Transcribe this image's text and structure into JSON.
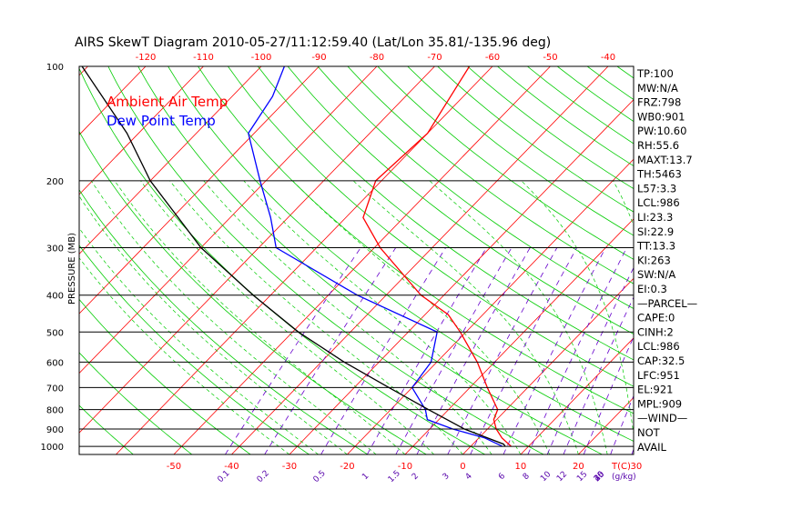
{
  "chart_data": {
    "type": "line",
    "title": "AIRS SkewT Diagram 2010-05-27/11:12:59.40 (Lat/Lon 35.81/-135.96 deg)",
    "ylabel": "PRESSURE (MB)",
    "pressure_ticks": [
      "100",
      "200",
      "300",
      "400",
      "500",
      "600",
      "700",
      "800",
      "900",
      "1000"
    ],
    "isobars": [
      100,
      200,
      300,
      400,
      500,
      600,
      700,
      800,
      900,
      1000
    ],
    "top_ticks": [
      -120,
      -110,
      -100,
      -90,
      -80,
      -70,
      -60,
      -50,
      -40
    ],
    "bottom_ticks": [
      -50,
      -40,
      -30,
      -20,
      -10,
      0,
      10,
      20,
      30
    ],
    "bottom_unit": "T(C)",
    "mixing_ratio_labels": [
      "0.1",
      "0.2",
      "0.5",
      "1",
      "1.5",
      "2",
      "3",
      "4",
      "6",
      "8",
      "10",
      "12",
      "15",
      "20",
      "25",
      "30",
      "40"
    ],
    "mixing_unit": "(g/kg)",
    "legend": [
      {
        "name": "Ambient Air Temp",
        "color": "#ff0000"
      },
      {
        "name": "Dew Point Temp",
        "color": "#0000ff"
      }
    ],
    "series": [
      {
        "name": "Ambient Air Temp",
        "color": "#ff0000",
        "points": [
          {
            "p": 1000,
            "t": 7
          },
          {
            "p": 950,
            "t": 4
          },
          {
            "p": 900,
            "t": 1.5
          },
          {
            "p": 850,
            "t": -0.5
          },
          {
            "p": 800,
            "t": -1.5
          },
          {
            "p": 700,
            "t": -7
          },
          {
            "p": 600,
            "t": -13
          },
          {
            "p": 500,
            "t": -21
          },
          {
            "p": 450,
            "t": -26
          },
          {
            "p": 400,
            "t": -34
          },
          {
            "p": 300,
            "t": -49
          },
          {
            "p": 250,
            "t": -57
          },
          {
            "p": 200,
            "t": -61
          },
          {
            "p": 150,
            "t": -60
          },
          {
            "p": 100,
            "t": -64
          }
        ]
      },
      {
        "name": "Dew Point Temp",
        "color": "#0000ff",
        "points": [
          {
            "p": 1000,
            "t": 5.5
          },
          {
            "p": 950,
            "t": 1
          },
          {
            "p": 900,
            "t": -6
          },
          {
            "p": 850,
            "t": -12
          },
          {
            "p": 800,
            "t": -14
          },
          {
            "p": 700,
            "t": -20
          },
          {
            "p": 600,
            "t": -21
          },
          {
            "p": 500,
            "t": -25
          },
          {
            "p": 400,
            "t": -45
          },
          {
            "p": 300,
            "t": -67
          },
          {
            "p": 250,
            "t": -73
          },
          {
            "p": 200,
            "t": -81
          },
          {
            "p": 150,
            "t": -91
          },
          {
            "p": 120,
            "t": -93
          },
          {
            "p": 100,
            "t": -96
          }
        ]
      },
      {
        "name": "Parcel",
        "color": "#000000",
        "points": [
          {
            "p": 1000,
            "t": 6
          },
          {
            "p": 986,
            "t": 5.3
          },
          {
            "p": 900,
            "t": -4
          },
          {
            "p": 800,
            "t": -13.5
          },
          {
            "p": 700,
            "t": -24
          },
          {
            "p": 600,
            "t": -36
          },
          {
            "p": 500,
            "t": -49
          },
          {
            "p": 400,
            "t": -63
          },
          {
            "p": 300,
            "t": -80
          },
          {
            "p": 200,
            "t": -100
          },
          {
            "p": 150,
            "t": -112
          },
          {
            "p": 100,
            "t": -131
          }
        ]
      }
    ],
    "grid": true
  },
  "stats": [
    "TP:100",
    "MW:N/A",
    "FRZ:798",
    "WB0:901",
    "PW:10.60",
    "RH:55.6",
    "MAXT:13.7",
    "TH:5463",
    "L57:3.3",
    "LCL:986",
    "LI:23.3",
    "SI:22.9",
    "TT:13.3",
    "KI:263",
    "SW:N/A",
    "EI:0.3",
    "—PARCEL—",
    "CAPE:0",
    "CINH:2",
    "LCL:986",
    "CAP:32.5",
    "LFC:951",
    "EL:921",
    "MPL:909",
    "—WIND—",
    "NOT",
    "AVAIL"
  ]
}
